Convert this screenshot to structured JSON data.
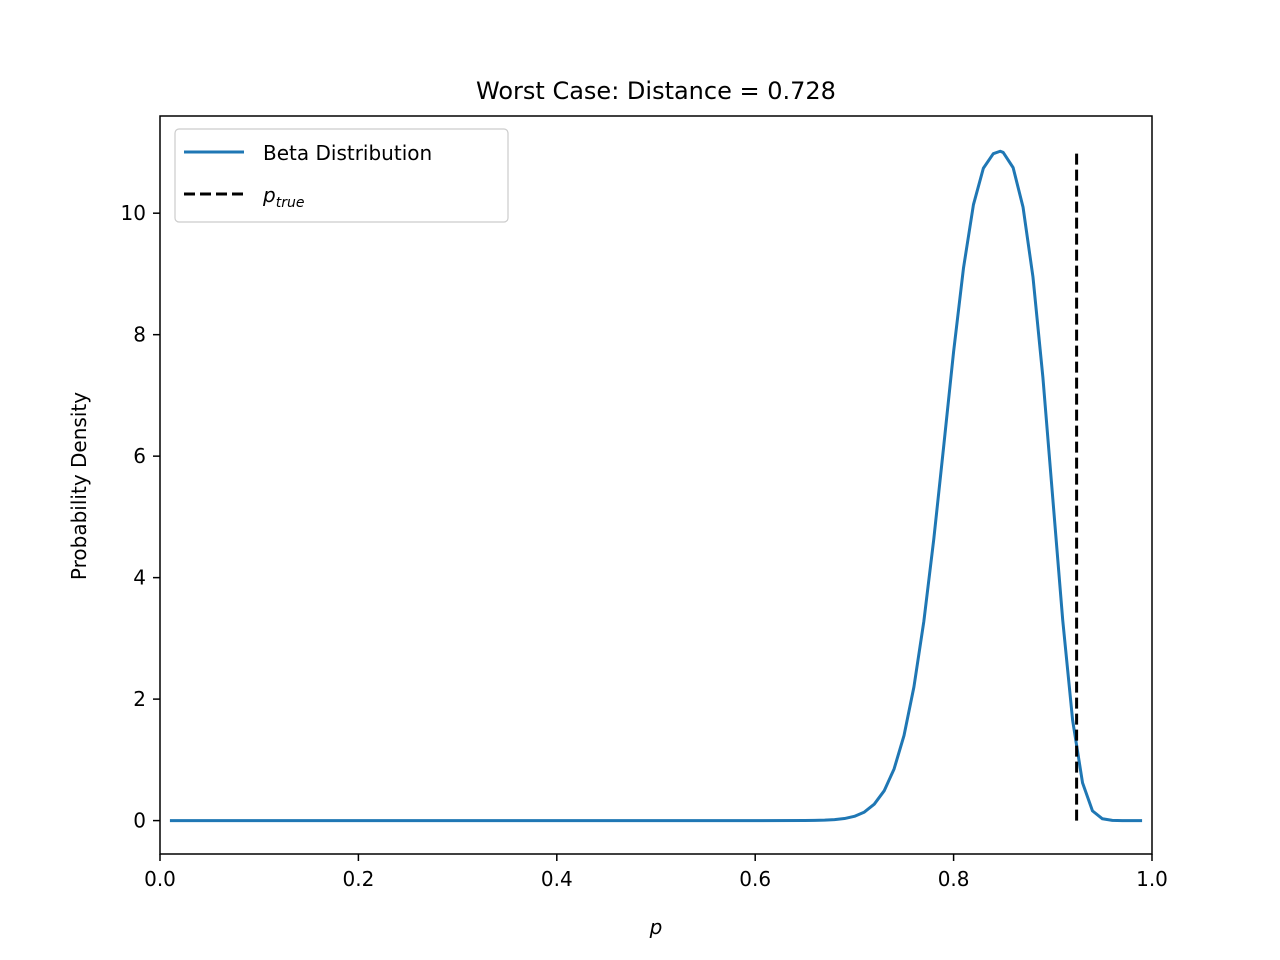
{
  "chart_data": {
    "type": "line",
    "title": "Worst Case: Distance = 0.728",
    "xlabel": "p",
    "ylabel": "Probability Density",
    "xlim": [
      0.0,
      1.0
    ],
    "ylim": [
      -0.55,
      11.6
    ],
    "xticks": [
      0.0,
      0.2,
      0.4,
      0.6,
      0.8,
      1.0
    ],
    "xtick_labels": [
      "0.0",
      "0.2",
      "0.4",
      "0.6",
      "0.8",
      "1.0"
    ],
    "yticks": [
      0,
      2,
      4,
      6,
      8,
      10
    ],
    "ytick_labels": [
      "0",
      "2",
      "4",
      "6",
      "8",
      "10"
    ],
    "grid": false,
    "legend_position": "top-left",
    "series": [
      {
        "name": "Beta Distribution",
        "style": "solid",
        "color": "#1f77b4",
        "x_range": [
          0.01,
          0.99
        ],
        "peak": {
          "x": 0.847,
          "y": 11.02
        },
        "points": [
          [
            0.01,
            0.0
          ],
          [
            0.1,
            0.0
          ],
          [
            0.2,
            0.0
          ],
          [
            0.3,
            0.0
          ],
          [
            0.4,
            0.0
          ],
          [
            0.5,
            0.0
          ],
          [
            0.6,
            0.0
          ],
          [
            0.65,
            0.001
          ],
          [
            0.66,
            0.003
          ],
          [
            0.67,
            0.007
          ],
          [
            0.68,
            0.016
          ],
          [
            0.69,
            0.034
          ],
          [
            0.7,
            0.07
          ],
          [
            0.71,
            0.14
          ],
          [
            0.72,
            0.27
          ],
          [
            0.73,
            0.49
          ],
          [
            0.74,
            0.85
          ],
          [
            0.75,
            1.4
          ],
          [
            0.76,
            2.2
          ],
          [
            0.77,
            3.28
          ],
          [
            0.78,
            4.63
          ],
          [
            0.79,
            6.16
          ],
          [
            0.8,
            7.72
          ],
          [
            0.81,
            9.1
          ],
          [
            0.82,
            10.14
          ],
          [
            0.83,
            10.74
          ],
          [
            0.84,
            10.98
          ],
          [
            0.847,
            11.02
          ],
          [
            0.85,
            11.0
          ],
          [
            0.86,
            10.75
          ],
          [
            0.87,
            10.1
          ],
          [
            0.88,
            8.95
          ],
          [
            0.89,
            7.3
          ],
          [
            0.9,
            5.3
          ],
          [
            0.91,
            3.3
          ],
          [
            0.92,
            1.65
          ],
          [
            0.93,
            0.62
          ],
          [
            0.94,
            0.16
          ],
          [
            0.95,
            0.03
          ],
          [
            0.96,
            0.004
          ],
          [
            0.97,
            0.0
          ],
          [
            0.99,
            0.0
          ]
        ]
      },
      {
        "name": "p_true",
        "legend_main": "p",
        "legend_sub": "true",
        "style": "dashed",
        "color": "#000000",
        "x": 0.924,
        "y_range": [
          0.0,
          11.02
        ]
      }
    ]
  }
}
